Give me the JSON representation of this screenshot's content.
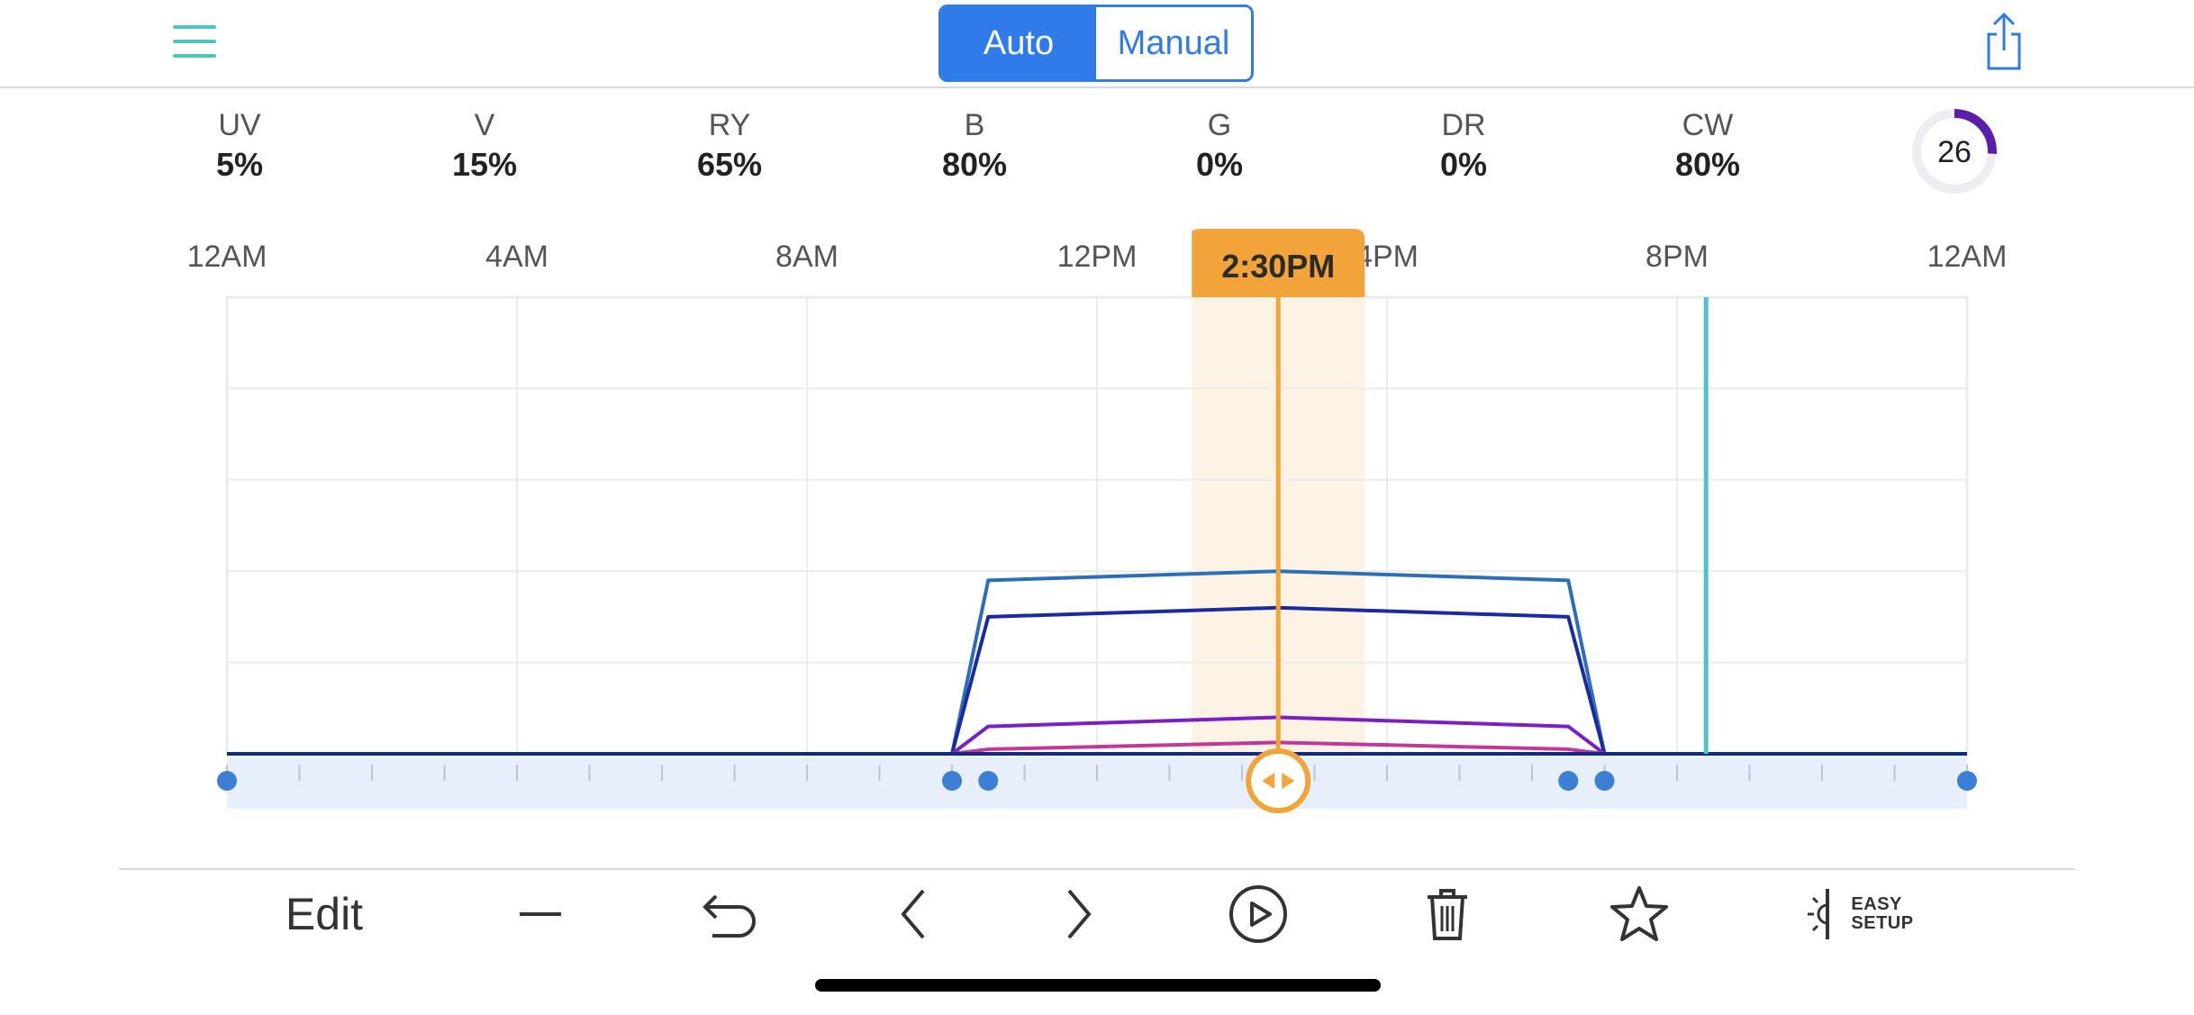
{
  "header": {
    "modes": [
      "Auto",
      "Manual"
    ],
    "active_mode": "Auto"
  },
  "channels": [
    {
      "name": "UV",
      "value": "5%"
    },
    {
      "name": "V",
      "value": "15%"
    },
    {
      "name": "RY",
      "value": "65%"
    },
    {
      "name": "B",
      "value": "80%"
    },
    {
      "name": "G",
      "value": "0%"
    },
    {
      "name": "DR",
      "value": "0%"
    },
    {
      "name": "CW",
      "value": "80%"
    }
  ],
  "intensity": {
    "value": "26",
    "fraction": 0.26,
    "color": "#5a1fa8"
  },
  "schedule": {
    "current_time": "2:30PM",
    "current_hour": 14.5,
    "now_hour": 20.4,
    "time_labels": [
      "12AM",
      "4AM",
      "8AM",
      "12PM",
      "4PM",
      "8PM",
      "12AM"
    ],
    "label_hours": [
      0,
      4,
      8,
      12,
      16,
      20,
      24
    ],
    "y_range": [
      0,
      100
    ],
    "keyframe_hours": [
      0,
      10,
      10.5,
      14.5,
      18.5,
      19,
      24
    ],
    "handle_hours": [
      0,
      10,
      10.5,
      18.5,
      19,
      24
    ]
  },
  "chart_data": {
    "type": "line",
    "x_label": "",
    "y_label": "",
    "x_ticks": [
      "12AM",
      "4AM",
      "8AM",
      "12PM",
      "4PM",
      "8PM",
      "12AM"
    ],
    "ylim": [
      0,
      100
    ],
    "series": [
      {
        "color": "#2c6fb8",
        "points": [
          [
            0,
            0
          ],
          [
            10,
            0
          ],
          [
            10.5,
            38
          ],
          [
            14.5,
            40
          ],
          [
            18.5,
            38
          ],
          [
            19,
            0
          ],
          [
            24,
            0
          ]
        ]
      },
      {
        "color": "#1a2ba0",
        "points": [
          [
            0,
            0
          ],
          [
            10,
            0
          ],
          [
            10.5,
            30
          ],
          [
            14.5,
            32
          ],
          [
            18.5,
            30
          ],
          [
            19,
            0
          ],
          [
            24,
            0
          ]
        ]
      },
      {
        "color": "#7b1fc4",
        "points": [
          [
            0,
            0
          ],
          [
            10,
            0
          ],
          [
            10.5,
            6
          ],
          [
            14.5,
            8
          ],
          [
            18.5,
            6
          ],
          [
            19,
            0
          ],
          [
            24,
            0
          ]
        ]
      },
      {
        "color": "#c2379a",
        "points": [
          [
            0,
            0
          ],
          [
            10,
            0
          ],
          [
            10.5,
            1
          ],
          [
            14.5,
            2.5
          ],
          [
            18.5,
            1
          ],
          [
            19,
            0
          ],
          [
            24,
            0
          ]
        ]
      },
      {
        "color": "#4caf50",
        "points": [
          [
            0,
            0
          ],
          [
            24,
            0
          ]
        ]
      },
      {
        "color": "#0d2a8a",
        "points": [
          [
            0,
            0
          ],
          [
            24,
            0
          ]
        ]
      }
    ]
  },
  "toolbar": {
    "edit_label": "Edit",
    "easy_setup_line1": "EASY",
    "easy_setup_line2": "SETUP"
  },
  "colors": {
    "accent_blue": "#2f7be8",
    "current_time_orange": "#f2a33a",
    "now_line_teal": "#4fc3c6",
    "grid": "#ececec",
    "handle_track": "#e7effa",
    "handle_dot": "#3d7fd4"
  }
}
